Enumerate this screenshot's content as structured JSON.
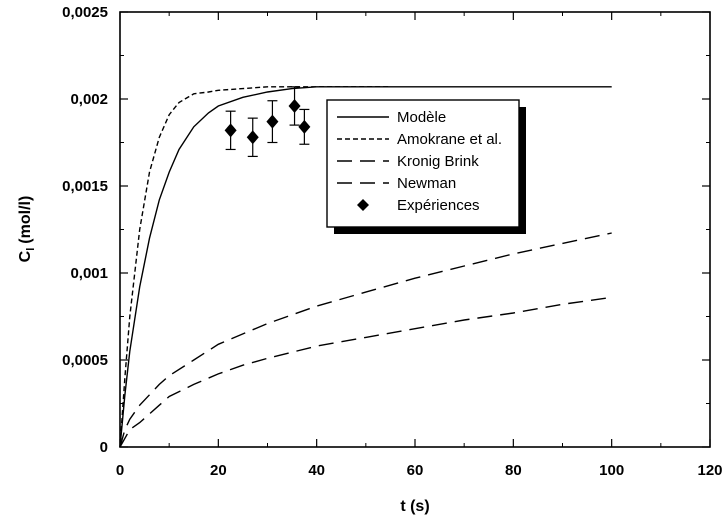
{
  "chart_data": {
    "type": "line",
    "xlabel": "t (s)",
    "ylabel_main": "C",
    "ylabel_sub": "l",
    "ylabel_unit": "(mol/l)",
    "xlim": [
      0,
      120
    ],
    "ylim": [
      0,
      0.0025
    ],
    "x_ticks": [
      0,
      20,
      40,
      60,
      80,
      100,
      120
    ],
    "y_ticks": [
      0,
      0.0005,
      0.001,
      0.0015,
      0.002,
      0.0025
    ],
    "x_tick_labels": [
      "0",
      "20",
      "40",
      "60",
      "80",
      "100",
      "120"
    ],
    "y_tick_labels": [
      "0",
      "0,0005",
      "0,001",
      "0,0015",
      "0,002",
      "0,0025"
    ],
    "grid": false,
    "legend_position": "upper-right",
    "series": [
      {
        "name": "Modèle",
        "style": "solid",
        "x": [
          0,
          1,
          2,
          4,
          6,
          8,
          10,
          12,
          15,
          18,
          20,
          25,
          30,
          35,
          40,
          50,
          60,
          80,
          100
        ],
        "y": [
          0,
          0.0003,
          0.00055,
          0.00092,
          0.0012,
          0.00142,
          0.00158,
          0.00171,
          0.00184,
          0.00192,
          0.00196,
          0.00201,
          0.00204,
          0.00206,
          0.00207,
          0.00207,
          0.00207,
          0.00207,
          0.00207
        ]
      },
      {
        "name": "Amokrane et al.",
        "style": "short-dash",
        "x": [
          0,
          1,
          2,
          4,
          6,
          8,
          10,
          12,
          15,
          18,
          20,
          25,
          30,
          40,
          50,
          55
        ],
        "y": [
          0,
          0.0004,
          0.00075,
          0.00125,
          0.00158,
          0.00178,
          0.00191,
          0.00198,
          0.00203,
          0.00204,
          0.00205,
          0.00206,
          0.00207,
          0.00207,
          0.00207,
          0.00207
        ]
      },
      {
        "name": "Kronig Brink",
        "style": "long-dash",
        "x": [
          0,
          1,
          2,
          4,
          6,
          8,
          10,
          15,
          20,
          25,
          30,
          40,
          50,
          60,
          70,
          80,
          90,
          100
        ],
        "y": [
          0,
          0.0001,
          0.00016,
          0.00024,
          0.0003,
          0.00036,
          0.00041,
          0.0005,
          0.00059,
          0.00065,
          0.00071,
          0.00081,
          0.00089,
          0.00097,
          0.00104,
          0.00111,
          0.00117,
          0.00123
        ]
      },
      {
        "name": "Newman",
        "style": "long-dash",
        "x": [
          0,
          1,
          2,
          4,
          6,
          8,
          10,
          15,
          20,
          25,
          30,
          40,
          50,
          60,
          70,
          80,
          90,
          100
        ],
        "y": [
          0,
          5e-05,
          0.0001,
          0.00014,
          0.00019,
          0.00024,
          0.00029,
          0.00036,
          0.00042,
          0.00047,
          0.00051,
          0.00058,
          0.00063,
          0.00068,
          0.00073,
          0.00077,
          0.00082,
          0.00086
        ]
      }
    ],
    "experiments": {
      "name": "Expériences",
      "x": [
        22.5,
        27,
        31,
        35.5,
        37.5
      ],
      "y": [
        0.00182,
        0.00178,
        0.00187,
        0.00196,
        0.00184
      ],
      "err": [
        0.00011,
        0.00011,
        0.00012,
        0.00011,
        0.0001
      ]
    }
  }
}
